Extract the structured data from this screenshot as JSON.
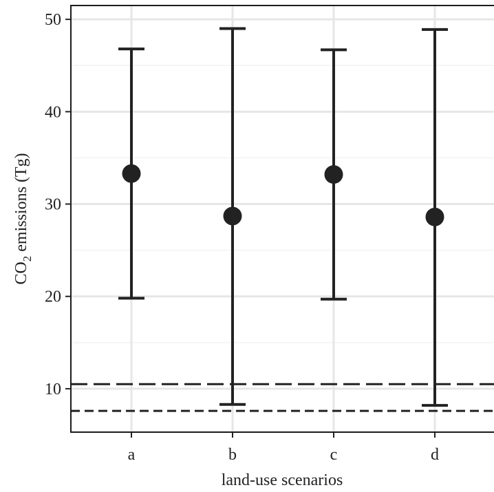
{
  "chart_data": {
    "type": "scatter",
    "xlabel": "land-use scenarios",
    "ylabel": {
      "main": "CO",
      "subscript": "2",
      "rest": " emissions (Tg)"
    },
    "categories": [
      "a",
      "b",
      "c",
      "d"
    ],
    "points": [
      {
        "category": "a",
        "mean": 33.3,
        "lower": 19.8,
        "upper": 46.8
      },
      {
        "category": "b",
        "mean": 28.7,
        "lower": 8.3,
        "upper": 49.0
      },
      {
        "category": "c",
        "mean": 33.2,
        "lower": 19.7,
        "upper": 46.7
      },
      {
        "category": "d",
        "mean": 28.6,
        "lower": 8.2,
        "upper": 48.9
      }
    ],
    "reference_lines": [
      {
        "value": 10.5,
        "style": "long-dash"
      },
      {
        "value": 7.6,
        "style": "short-dash"
      }
    ],
    "ylim": [
      5.3,
      51.5
    ],
    "yticks": [
      10,
      20,
      30,
      40,
      50
    ],
    "grid": true,
    "colors": {
      "points": "#222222",
      "grid_major": "#e6e6e6",
      "grid_minor": "#f2f2f2",
      "border": "#1a1a1a"
    }
  }
}
